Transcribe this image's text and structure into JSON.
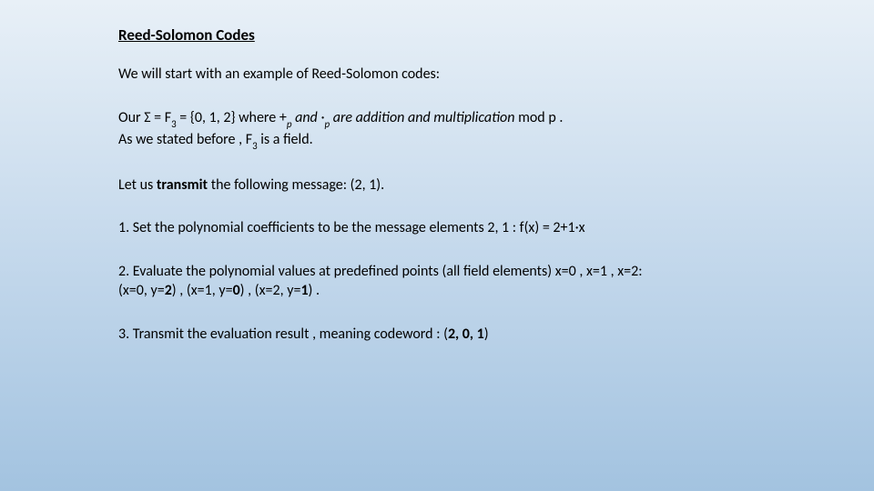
{
  "slide": {
    "title": "Reed-Solomon Codes",
    "intro": "We will start with an example of Reed-Solomon codes:",
    "sigma_line": {
      "prefix": "Our Σ = F",
      "sub1": "3",
      "mid1": " = {0, 1, 2}  where +",
      "sub2": "p",
      "mid2": " and ·",
      "sub3": "p",
      "mid3": " are addition and multiplication",
      "tail": " mod p ."
    },
    "field_line": {
      "prefix": "As we stated before , F",
      "sub": "3",
      "suffix": " is a field."
    },
    "transmit_line": {
      "p1": "Let us ",
      "bold": "transmit",
      "p2": " the following message:  (2, 1)."
    },
    "step1": "1. Set the polynomial coefficients to be the message elements 2, 1 :  f(x) = 2+1·x",
    "step2": "2. Evaluate the polynomial values at predefined points (all field elements)  x=0 , x=1 , x=2:",
    "step2b_a": "(x=0, y=",
    "step2b_b": "2",
    "step2b_c": ") , (x=1, y=",
    "step2b_d": "0",
    "step2b_e": ") , (x=2, y=",
    "step2b_f": "1",
    "step2b_g": ") .",
    "step3_a": "3. Transmit the evaluation result , meaning codeword : (",
    "step3_b": "2, 0, 1",
    "step3_c": ")"
  },
  "style": {
    "bg_gradient_top": "#e8f0f7",
    "bg_gradient_mid": "#c5d9ec",
    "bg_gradient_bottom": "#a3c3e0",
    "text_color": "#000000",
    "title_fontsize": 17,
    "body_fontsize": 16,
    "sub_fontsize": 11,
    "font_family": "Calibri"
  }
}
